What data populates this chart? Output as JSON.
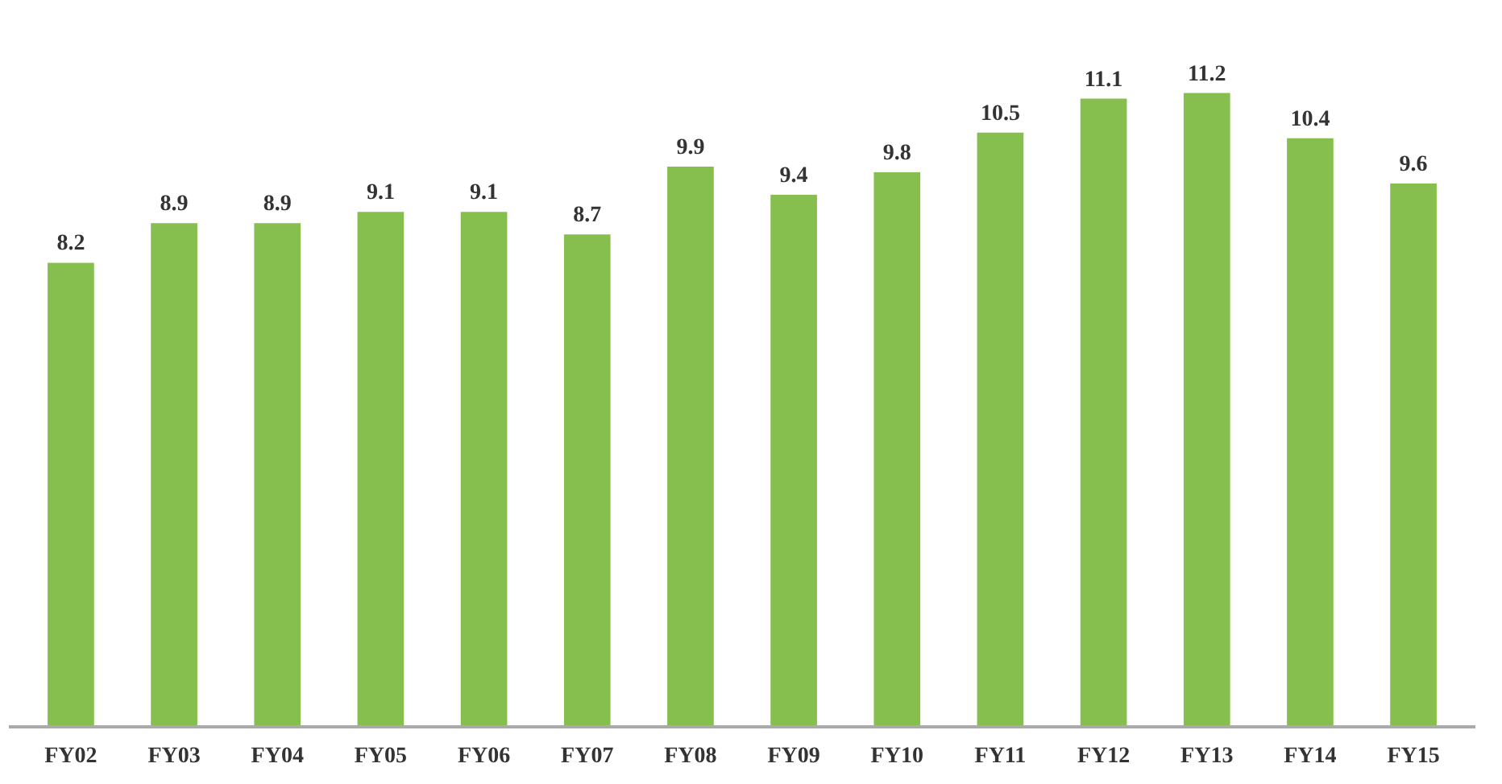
{
  "chart_data": {
    "type": "bar",
    "categories": [
      "FY02",
      "FY03",
      "FY04",
      "FY05",
      "FY06",
      "FY07",
      "FY08",
      "FY09",
      "FY10",
      "FY11",
      "FY12",
      "FY13",
      "FY14",
      "FY15"
    ],
    "values": [
      8.2,
      8.9,
      8.9,
      9.1,
      9.1,
      8.7,
      9.9,
      9.4,
      9.8,
      10.5,
      11.1,
      11.2,
      10.4,
      9.6
    ],
    "color": "#86bf4e",
    "data_labels": true,
    "tick_labels": "x"
  }
}
